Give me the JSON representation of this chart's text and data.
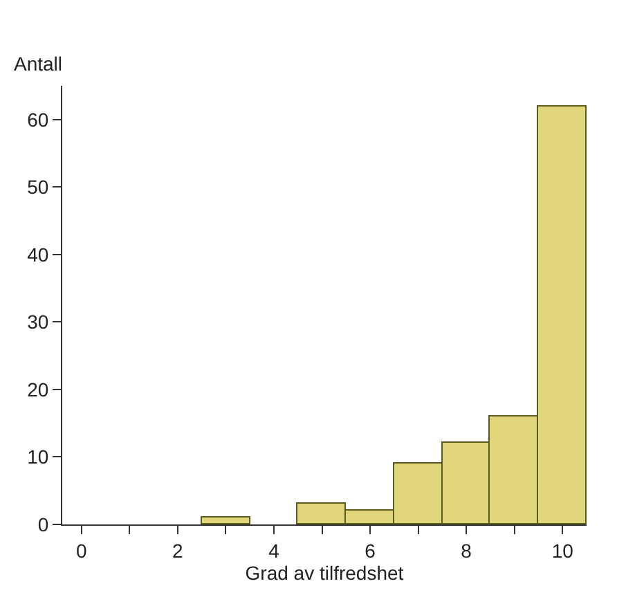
{
  "chart_data": {
    "type": "histogram",
    "xlabel": "Grad av tilfredshet",
    "ylabel": "Antall",
    "bins": [
      -0.5,
      0.5,
      1.5,
      2.5,
      3.5,
      4.5,
      5.5,
      6.5,
      7.5,
      8.5,
      9.5,
      10.5
    ],
    "values": [
      0,
      0,
      0,
      1,
      0,
      3,
      2,
      9,
      12,
      16,
      62
    ],
    "color": "#e2d67a",
    "xlim": [
      -0.4,
      10.5
    ],
    "ylim": [
      0,
      65
    ],
    "xticks": [
      0,
      {
        "value": 1,
        "label": null
      },
      2,
      {
        "value": 3,
        "label": null
      },
      4,
      {
        "value": 5,
        "label": null
      },
      6,
      {
        "value": 7,
        "label": null
      },
      8,
      {
        "value": 9,
        "label": null
      },
      10
    ],
    "yticks": [
      0,
      10,
      20,
      30,
      40,
      50,
      60
    ],
    "grid": false,
    "legend": false
  }
}
